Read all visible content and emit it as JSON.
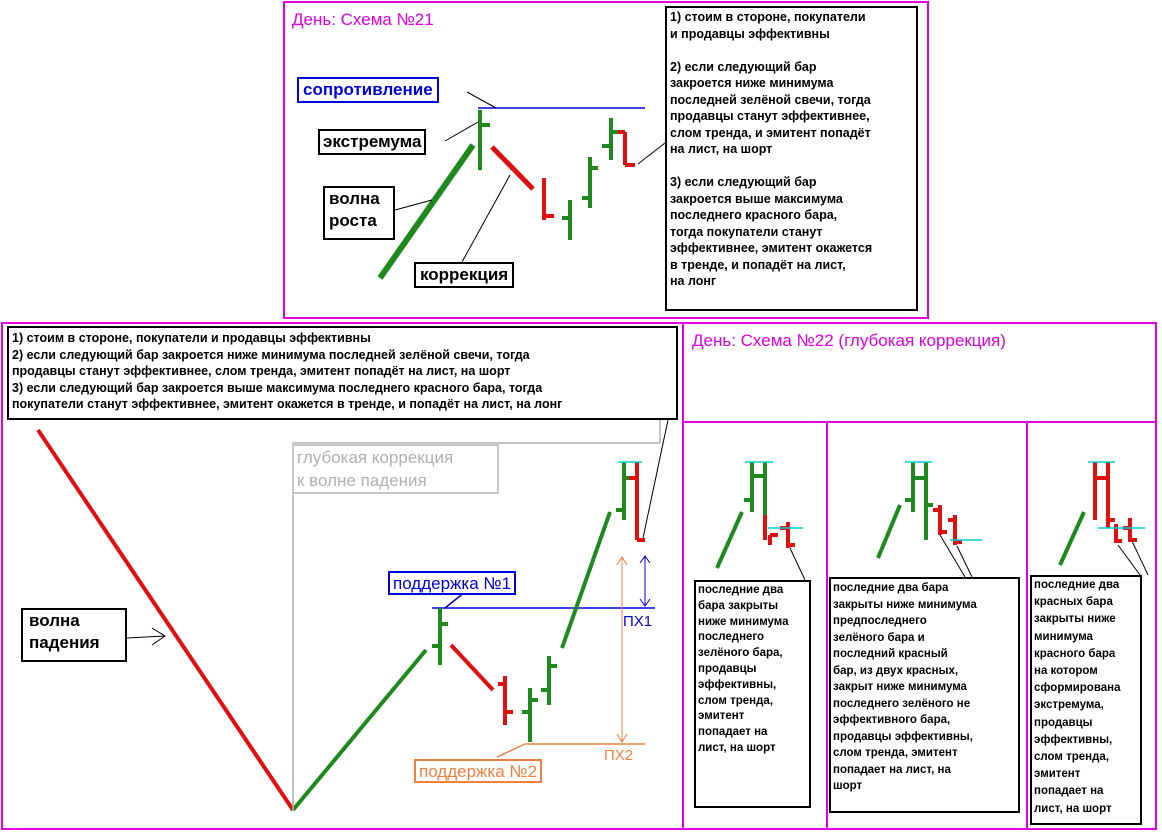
{
  "schema21": {
    "title": "День: Схема №21",
    "notes": "1) стоим в стороне, покупатели\nи продавцы эффективны\n\n2) если следующий бар\nзакроется ниже минимума\nпоследней зелёной свечи, тогда\nпродавцы станут эффективнее,\nслом тренда, и эмитент попадёт\nна лист, на шорт\n\n3) если следующий бар\nзакроется выше максимума\nпоследнего красного бара,\nтогда покупатели станут\nэффективнее, эмитент окажется\nв тренде, и попадёт на лист,\nна лонг",
    "resistance_label": "сопротивление",
    "extremum_label": "экстремума",
    "growth_wave_label": "волна\nроста",
    "correction_label": "коррекция"
  },
  "bottom_left": {
    "notes": "1) стоим в стороне, покупатели и продавцы эффективны\n2) если следующий бар закроется ниже минимума последней зелёной свечи, тогда\nпродавцы станут эффективнее, слом тренда, эмитент попадёт на лист, на шорт\n3) если следующий бар закроется выше максимума последнего красного бара, тогда\nпокупатели станут эффективнее, эмитент окажется в тренде, и попадёт на лист, на лонг",
    "deep_correction_label": "глубокая коррекция\nк волне падения",
    "support1_label": "поддержка №1",
    "support2_label": "поддержка №2",
    "fall_wave_label": "волна\nпадения",
    "px1_label": "ПХ1",
    "px2_label": "ПХ2"
  },
  "schema22": {
    "title": "День: Схема №22 (глубокая коррекция)",
    "panel1_text": "последние два\nбара закрыты\nниже минимума\nпоследнего\nзелёного бара,\nпродавцы\nэффективны,\nслом тренда,\nэмитент\nпопадает на\nлист, на шорт",
    "panel2_text": "последние два бара\nзакрыты ниже минимума\nпредпоследнего\nзелёного бара и\nпоследний красный\nбар, из двух красных,\nзакрыт ниже минимума\nпоследнего зелёного не\nэффективного бара,\nпродавцы эффективны,\nслом тренда, эмитент\nпопадает на лист, на\nшорт",
    "panel3_text": "последние два\n красных бара\nзакрыты ниже\nминимума\nкрасного бара\nна котором\nсформирована\nэкстремума,\nпродавцы\nэффективны,\nслом тренда,\nэмитент\nпопадает на\nлист, на шорт"
  },
  "colors": {
    "frame": "#e000e0",
    "green_bar": "#1e8a1e",
    "red_bar": "#e01010",
    "resistance": "#0000dd",
    "support2": "#f08040",
    "deep_correction": "#b0b0b0",
    "cyan_level": "#00d0d0"
  }
}
